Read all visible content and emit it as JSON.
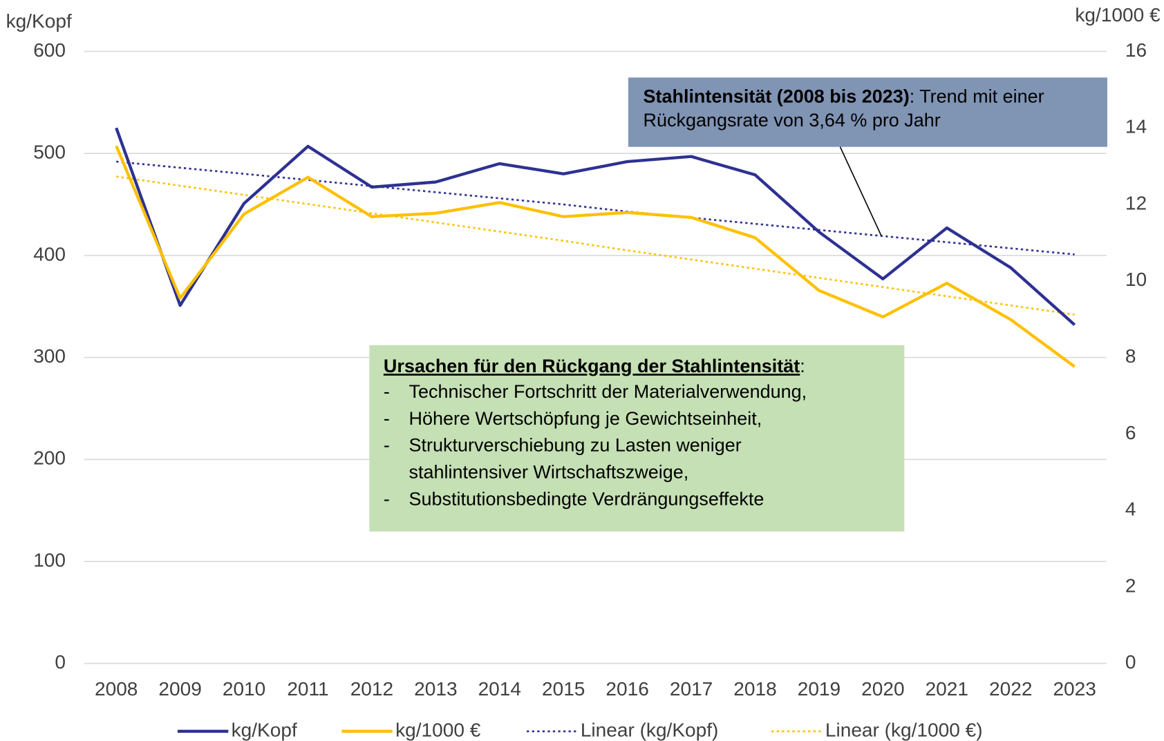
{
  "chart_data": {
    "type": "line",
    "y_label": "kg/Kopf",
    "y2_label": "kg/1000 €",
    "categories": [
      "2008",
      "2009",
      "2010",
      "2011",
      "2012",
      "2013",
      "2014",
      "2015",
      "2016",
      "2017",
      "2018",
      "2019",
      "2020",
      "2021",
      "2022",
      "2023"
    ],
    "series": [
      {
        "name": "kg/Kopf",
        "color": "#2e3192",
        "width": 4,
        "dashed": false,
        "values": [
          525,
          351,
          451,
          507,
          467,
          472,
          490,
          480,
          492,
          497,
          479,
          423,
          377,
          427,
          388,
          332
        ]
      },
      {
        "name": "kg/1000 €",
        "color": "#ffc000",
        "width": 4,
        "dashed": false,
        "axis": "y2",
        "values": [
          13.53,
          9.55,
          11.75,
          12.71,
          11.68,
          11.77,
          12.05,
          11.68,
          11.79,
          11.66,
          11.13,
          9.75,
          9.06,
          9.94,
          8.99,
          7.76
        ]
      },
      {
        "name": "Linear (kg/Kopf)",
        "color": "#2e3192",
        "width": 2.5,
        "dashed": true,
        "values": [
          492,
          486,
          480,
          474,
          468,
          462,
          456,
          450,
          443,
          437,
          431,
          425,
          419,
          413,
          407,
          401
        ]
      },
      {
        "name": "Linear (kg/1000 €)",
        "color": "#ffc000",
        "width": 2.5,
        "dashed": true,
        "axis": "y2",
        "values": [
          12.73,
          12.49,
          12.25,
          12.01,
          11.77,
          11.53,
          11.29,
          11.05,
          10.8,
          10.56,
          10.32,
          10.08,
          9.84,
          9.6,
          9.36,
          9.12
        ]
      }
    ],
    "ylim": [
      0,
      600
    ],
    "yticks": [
      0,
      100,
      200,
      300,
      400,
      500,
      600
    ],
    "y2lim": [
      0,
      16
    ],
    "y2ticks": [
      0,
      2,
      4,
      6,
      8,
      10,
      12,
      14,
      16
    ],
    "grid": true,
    "legend": "bottom",
    "trend_note": {
      "bold": "Stahlintensität (2008 bis 2023)",
      "line1": ": Trend mit einer",
      "line2": "Rückgangsrate von 3,64 % pro Jahr"
    },
    "causes_note": {
      "heading": "Ursachen für den Rückgang der Stahlintensität",
      "colon": ":",
      "bullet": "-",
      "items": [
        [
          "Technischer Fortschritt der Materialverwendung,"
        ],
        [
          "Höhere Wertschöpfung je Gewichtseinheit,"
        ],
        [
          "Strukturverschiebung zu Lasten weniger",
          "stahlintensiver Wirtschaftszweige,"
        ],
        [
          "Substitutionsbedingte Verdrängungseffekte"
        ]
      ]
    }
  }
}
